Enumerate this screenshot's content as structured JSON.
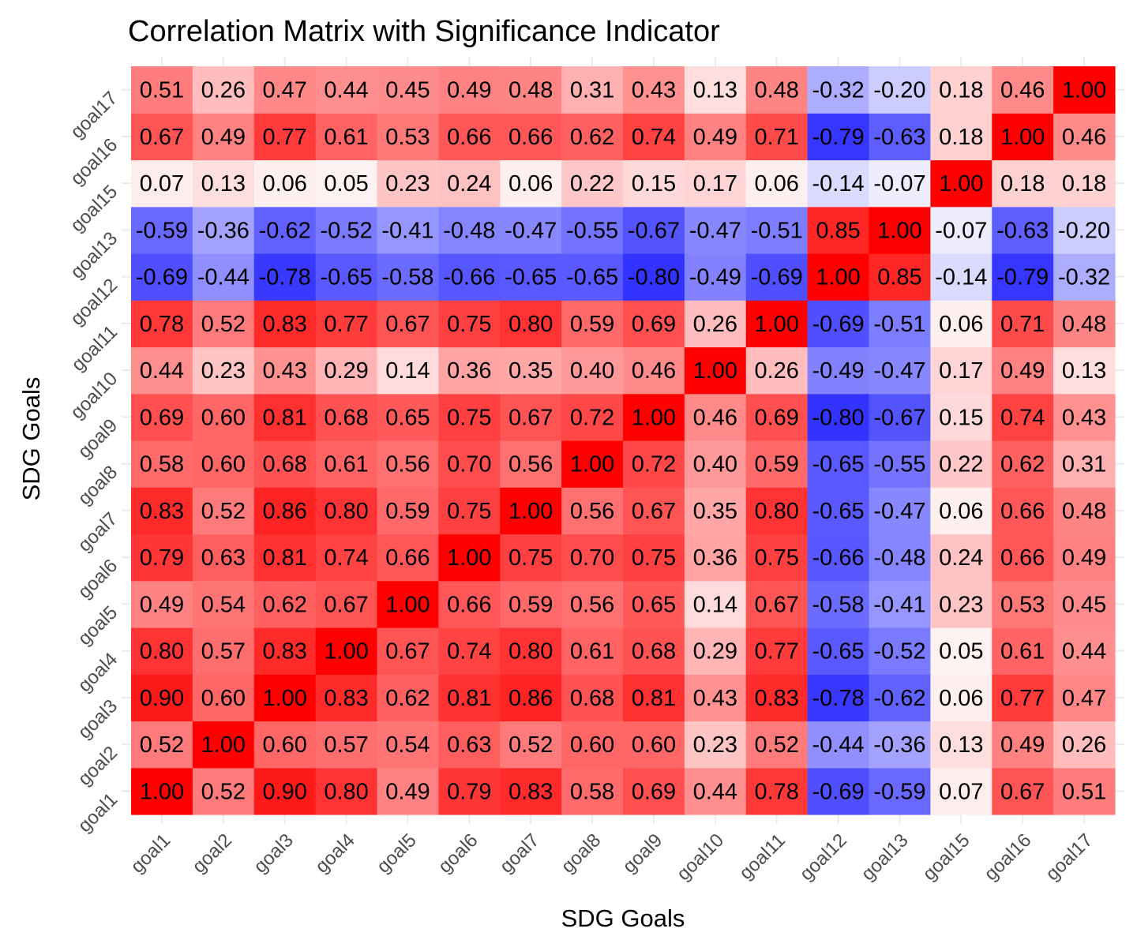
{
  "chart_data": {
    "type": "heatmap",
    "title": "Correlation Matrix with Significance Indicator",
    "xlabel": "SDG Goals",
    "ylabel": "SDG Goals",
    "x_categories": [
      "goal1",
      "goal2",
      "goal3",
      "goal4",
      "goal5",
      "goal6",
      "goal7",
      "goal8",
      "goal9",
      "goal10",
      "goal11",
      "goal12",
      "goal13",
      "goal15",
      "goal16",
      "goal17"
    ],
    "y_categories": [
      "goal1",
      "goal2",
      "goal3",
      "goal4",
      "goal5",
      "goal6",
      "goal7",
      "goal8",
      "goal9",
      "goal10",
      "goal11",
      "goal12",
      "goal13",
      "goal15",
      "goal16",
      "goal17"
    ],
    "value_range": [
      -1,
      1
    ],
    "color_scale": {
      "low": "#0000ff",
      "mid": "#ffffff",
      "high": "#ff0000"
    },
    "grid": true,
    "legend": "none",
    "matrix": [
      [
        1.0,
        0.52,
        0.9,
        0.8,
        0.49,
        0.79,
        0.83,
        0.58,
        0.69,
        0.44,
        0.78,
        -0.69,
        -0.59,
        0.07,
        0.67,
        0.51
      ],
      [
        0.52,
        1.0,
        0.6,
        0.57,
        0.54,
        0.63,
        0.52,
        0.6,
        0.6,
        0.23,
        0.52,
        -0.44,
        -0.36,
        0.13,
        0.49,
        0.26
      ],
      [
        0.9,
        0.6,
        1.0,
        0.83,
        0.62,
        0.81,
        0.86,
        0.68,
        0.81,
        0.43,
        0.83,
        -0.78,
        -0.62,
        0.06,
        0.77,
        0.47
      ],
      [
        0.8,
        0.57,
        0.83,
        1.0,
        0.67,
        0.74,
        0.8,
        0.61,
        0.68,
        0.29,
        0.77,
        -0.65,
        -0.52,
        0.05,
        0.61,
        0.44
      ],
      [
        0.49,
        0.54,
        0.62,
        0.67,
        1.0,
        0.66,
        0.59,
        0.56,
        0.65,
        0.14,
        0.67,
        -0.58,
        -0.41,
        0.23,
        0.53,
        0.45
      ],
      [
        0.79,
        0.63,
        0.81,
        0.74,
        0.66,
        1.0,
        0.75,
        0.7,
        0.75,
        0.36,
        0.75,
        -0.66,
        -0.48,
        0.24,
        0.66,
        0.49
      ],
      [
        0.83,
        0.52,
        0.86,
        0.8,
        0.59,
        0.75,
        1.0,
        0.56,
        0.67,
        0.35,
        0.8,
        -0.65,
        -0.47,
        0.06,
        0.66,
        0.48
      ],
      [
        0.58,
        0.6,
        0.68,
        0.61,
        0.56,
        0.7,
        0.56,
        1.0,
        0.72,
        0.4,
        0.59,
        -0.65,
        -0.55,
        0.22,
        0.62,
        0.31
      ],
      [
        0.69,
        0.6,
        0.81,
        0.68,
        0.65,
        0.75,
        0.67,
        0.72,
        1.0,
        0.46,
        0.69,
        -0.8,
        -0.67,
        0.15,
        0.74,
        0.43
      ],
      [
        0.44,
        0.23,
        0.43,
        0.29,
        0.14,
        0.36,
        0.35,
        0.4,
        0.46,
        1.0,
        0.26,
        -0.49,
        -0.47,
        0.17,
        0.49,
        0.13
      ],
      [
        0.78,
        0.52,
        0.83,
        0.77,
        0.67,
        0.75,
        0.8,
        0.59,
        0.69,
        0.26,
        1.0,
        -0.69,
        -0.51,
        0.06,
        0.71,
        0.48
      ],
      [
        -0.69,
        -0.44,
        -0.78,
        -0.65,
        -0.58,
        -0.66,
        -0.65,
        -0.65,
        -0.8,
        -0.49,
        -0.69,
        1.0,
        0.85,
        -0.14,
        -0.79,
        -0.32
      ],
      [
        -0.59,
        -0.36,
        -0.62,
        -0.52,
        -0.41,
        -0.48,
        -0.47,
        -0.55,
        -0.67,
        -0.47,
        -0.51,
        0.85,
        1.0,
        -0.07,
        -0.63,
        -0.2
      ],
      [
        0.07,
        0.13,
        0.06,
        0.05,
        0.23,
        0.24,
        0.06,
        0.22,
        0.15,
        0.17,
        0.06,
        -0.14,
        -0.07,
        1.0,
        0.18,
        0.18
      ],
      [
        0.67,
        0.49,
        0.77,
        0.61,
        0.53,
        0.66,
        0.66,
        0.62,
        0.74,
        0.49,
        0.71,
        -0.79,
        -0.63,
        0.18,
        1.0,
        0.46
      ],
      [
        0.51,
        0.26,
        0.47,
        0.44,
        0.45,
        0.49,
        0.48,
        0.31,
        0.43,
        0.13,
        0.48,
        -0.32,
        -0.2,
        0.18,
        0.46,
        1.0
      ]
    ]
  }
}
